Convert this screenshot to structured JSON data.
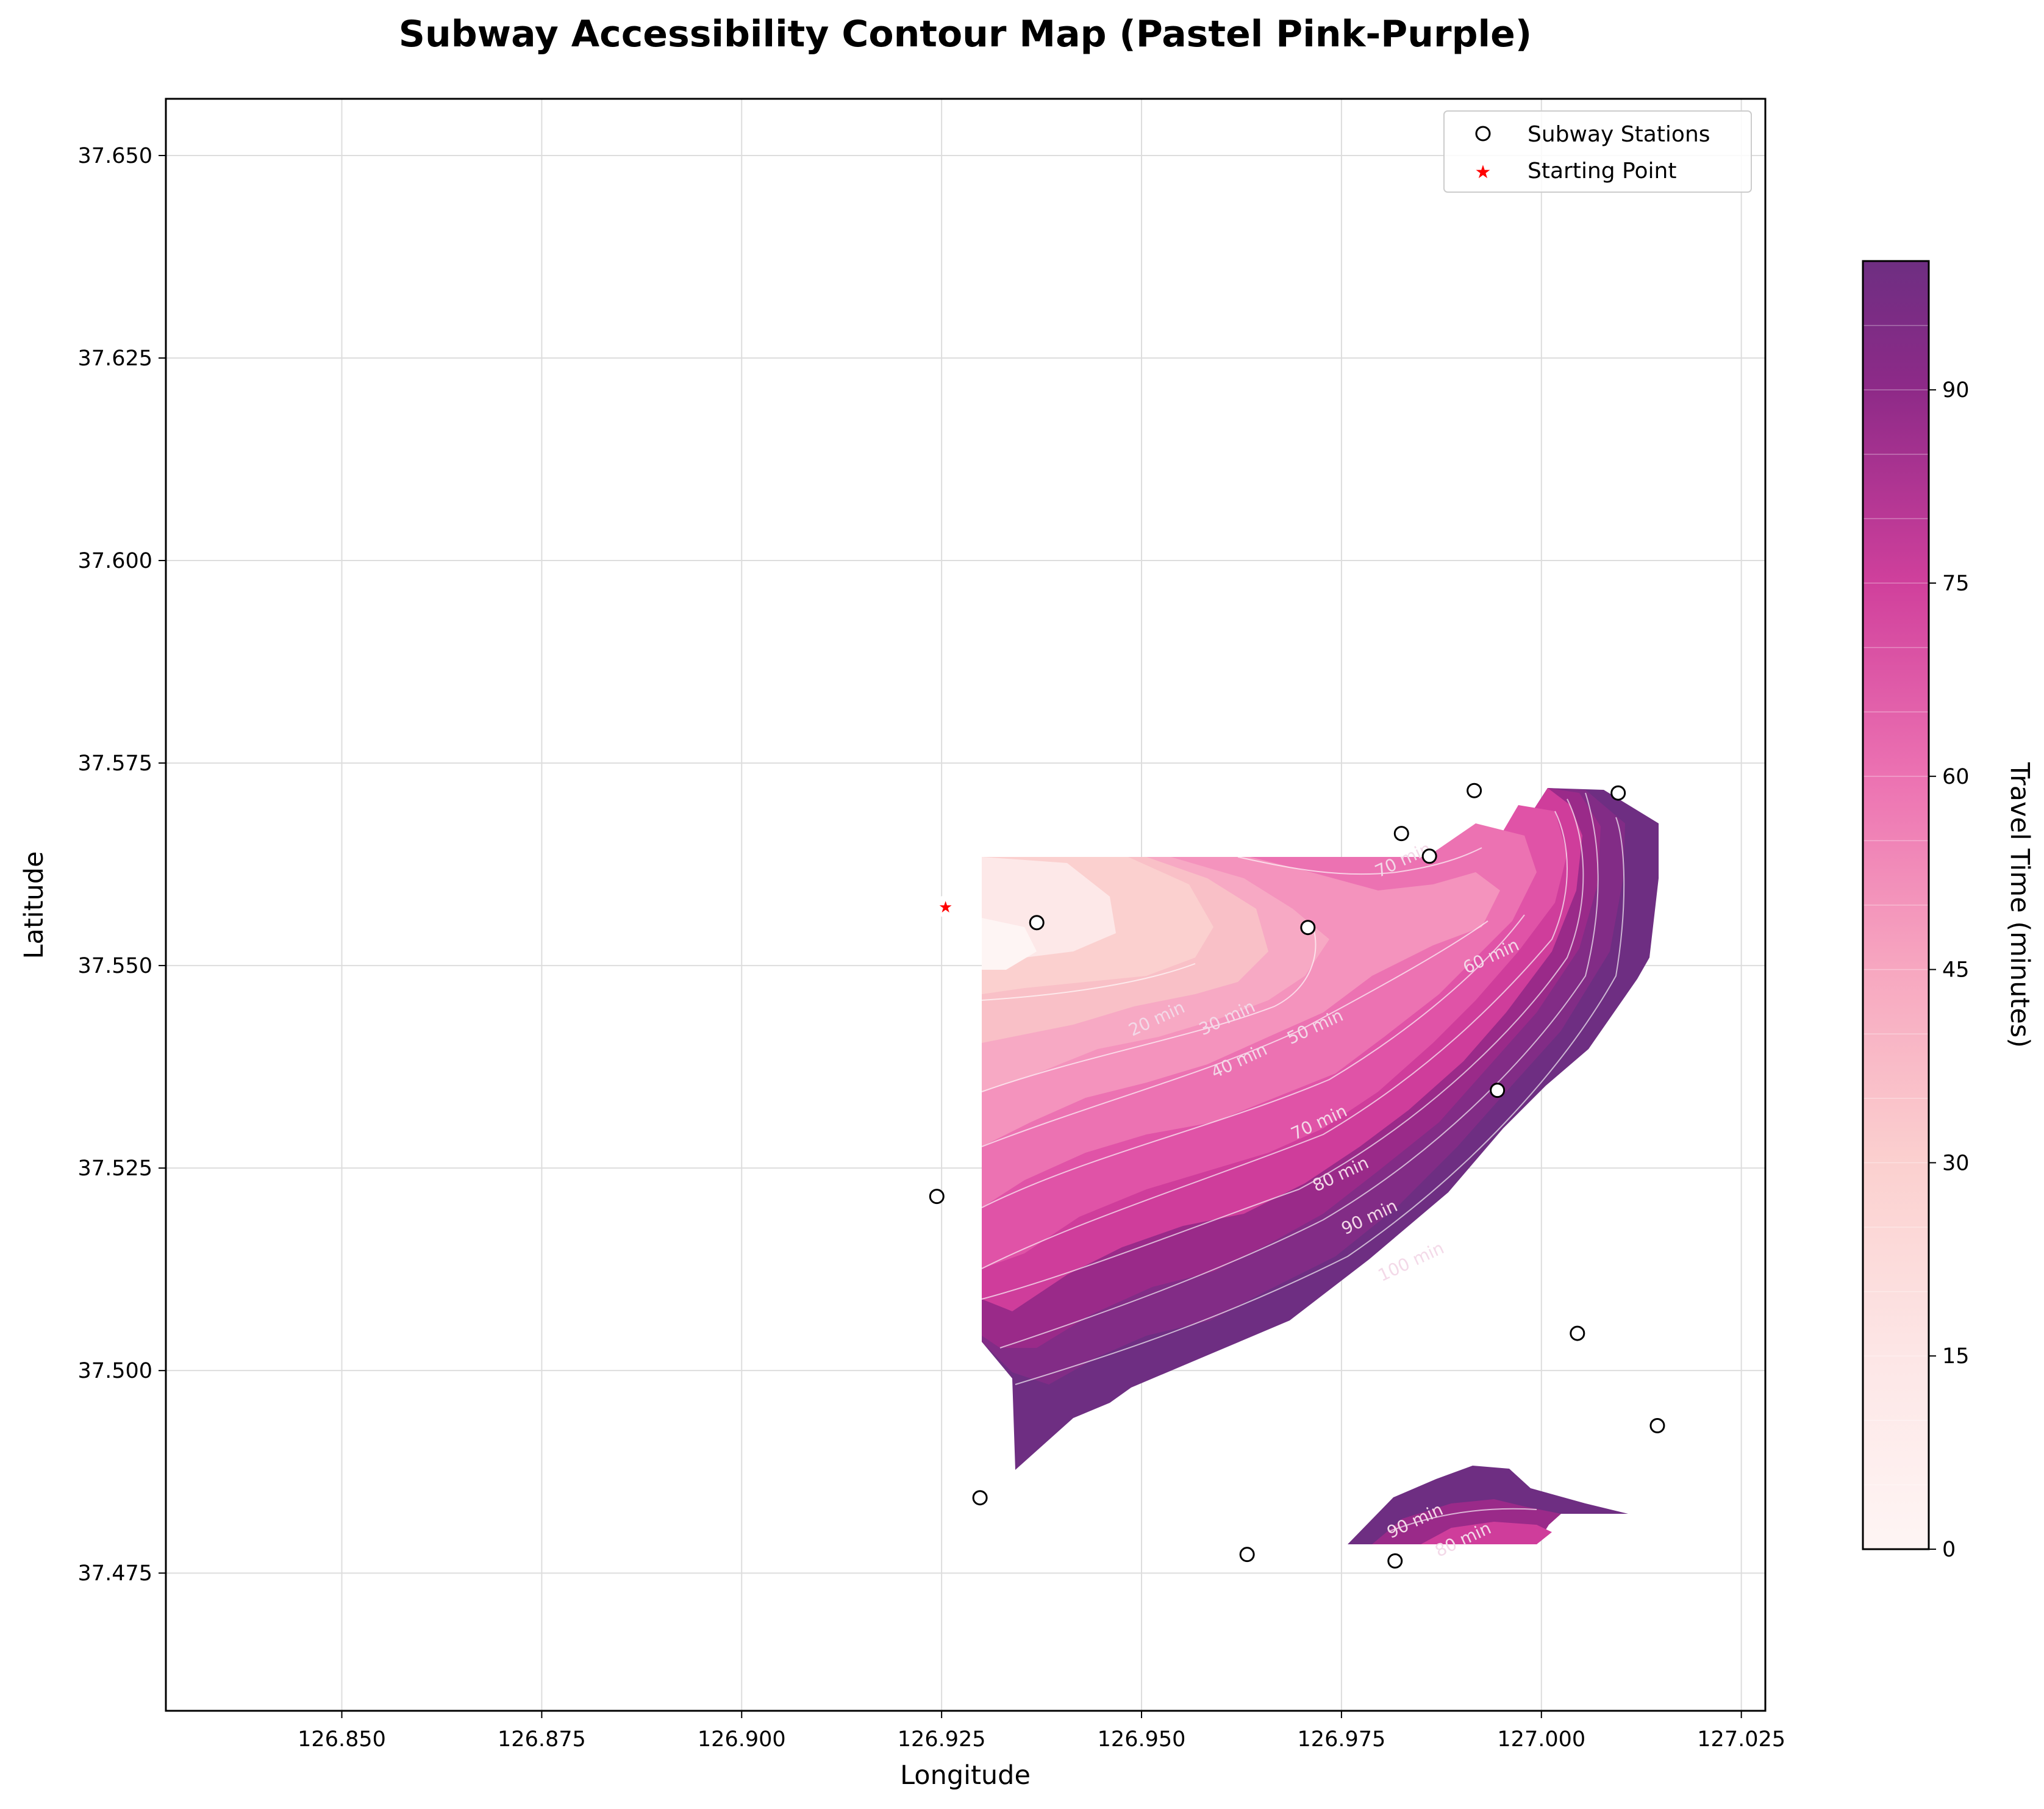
{
  "chart_data": {
    "type": "contour",
    "title": "Subway Accessibility Contour Map (Pastel Pink-Purple)",
    "xlabel": "Longitude",
    "ylabel": "Latitude",
    "xlim": [
      126.828,
      127.028
    ],
    "ylim": [
      37.458,
      37.657
    ],
    "xticks": [
      "126.850",
      "126.875",
      "126.900",
      "126.925",
      "126.950",
      "126.975",
      "127.000",
      "127.025"
    ],
    "yticks": [
      "37.475",
      "37.500",
      "37.525",
      "37.550",
      "37.575",
      "37.600",
      "37.625",
      "37.650"
    ],
    "grid": true,
    "legend": {
      "position": "top-right",
      "entries": [
        "Subway Stations",
        "Starting Point"
      ]
    },
    "colorbar": {
      "label": "Travel Time (minutes)",
      "range": [
        0,
        100
      ],
      "ticks": [
        "0",
        "15",
        "30",
        "45",
        "60",
        "75",
        "90"
      ]
    },
    "starting_point": {
      "x": 126.9255,
      "y": 37.5573,
      "color": "#ff0000"
    },
    "stations": [
      {
        "x": 126.9369,
        "y": 37.5553
      },
      {
        "x": 126.9708,
        "y": 37.5547
      },
      {
        "x": 126.9825,
        "y": 37.5663
      },
      {
        "x": 126.986,
        "y": 37.5635
      },
      {
        "x": 126.9916,
        "y": 37.5716
      },
      {
        "x": 127.0096,
        "y": 37.5713
      },
      {
        "x": 126.9945,
        "y": 37.5346
      },
      {
        "x": 126.9244,
        "y": 37.5215
      },
      {
        "x": 127.0045,
        "y": 37.5046
      },
      {
        "x": 127.0145,
        "y": 37.4932
      },
      {
        "x": 126.9298,
        "y": 37.4843
      },
      {
        "x": 126.9632,
        "y": 37.4773
      },
      {
        "x": 126.9817,
        "y": 37.4765
      }
    ],
    "contour_labels": [
      {
        "text": "20 min",
        "x": 126.9522,
        "y": 37.5428
      },
      {
        "text": "30 min",
        "x": 126.961,
        "y": 37.5429
      },
      {
        "text": "40 min",
        "x": 126.9625,
        "y": 37.5376
      },
      {
        "text": "50 min",
        "x": 126.972,
        "y": 37.5418
      },
      {
        "text": "60 min",
        "x": 126.994,
        "y": 37.5505
      },
      {
        "text": "70 min",
        "x": 126.983,
        "y": 37.5624
      },
      {
        "text": "70 min",
        "x": 126.9725,
        "y": 37.53
      },
      {
        "text": "80 min",
        "x": 126.9752,
        "y": 37.5236
      },
      {
        "text": "90 min",
        "x": 126.9788,
        "y": 37.5183
      },
      {
        "text": "100 min",
        "x": 126.984,
        "y": 37.5128
      },
      {
        "text": "90 min",
        "x": 126.9845,
        "y": 37.4808
      },
      {
        "text": "80 min",
        "x": 126.9905,
        "y": 37.4785
      }
    ],
    "colors": {
      "level_colors": [
        "#fef5f4",
        "#fde8e8",
        "#fcdcdc",
        "#fbd0cf",
        "#f9c0c7",
        "#f7a9c4",
        "#f493bd",
        "#ec72b2",
        "#e053a7",
        "#cf3d9b",
        "#b6308f",
        "#9a2a89",
        "#822c86",
        "#6e2e82"
      ],
      "station_edge": "#000000",
      "grid": "#dddddd"
    }
  }
}
